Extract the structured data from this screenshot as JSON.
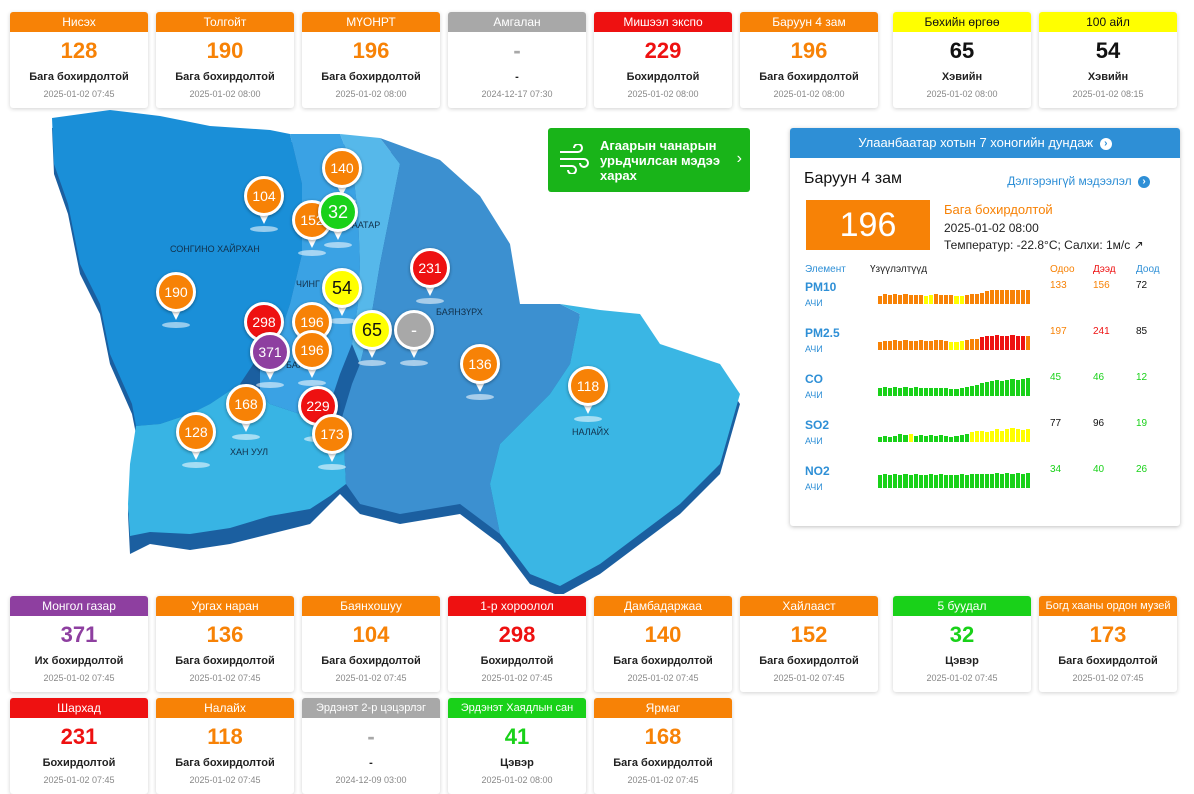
{
  "top_cards": [
    {
      "name": "Нисэх",
      "value": "128",
      "status": "Бага бохирдолтой",
      "time": "2025-01-02 07:45",
      "header_color": "#f78206",
      "value_color": "#f78206",
      "title_text_color": "#ffffff"
    },
    {
      "name": "Толгойт",
      "value": "190",
      "status": "Бага бохирдолтой",
      "time": "2025-01-02 08:00",
      "header_color": "#f78206",
      "value_color": "#f78206",
      "title_text_color": "#ffffff"
    },
    {
      "name": "МҮОНРТ",
      "value": "196",
      "status": "Бага бохирдолтой",
      "time": "2025-01-02 08:00",
      "header_color": "#f78206",
      "value_color": "#f78206",
      "title_text_color": "#ffffff"
    },
    {
      "name": "Амгалан",
      "value": "-",
      "status": "-",
      "time": "2024-12-17 07:30",
      "header_color": "#a8a8a8",
      "value_color": "#a8a8a8",
      "title_text_color": "#ffffff"
    },
    {
      "name": "Мишээл экспо",
      "value": "229",
      "status": "Бохирдолтой",
      "time": "2025-01-02 08:00",
      "header_color": "#ee1111",
      "value_color": "#ee1111",
      "title_text_color": "#ffffff"
    },
    {
      "name": "Баруун 4 зам",
      "value": "196",
      "status": "Бага бохирдолтой",
      "time": "2025-01-02 08:00",
      "header_color": "#f78206",
      "value_color": "#f78206",
      "title_text_color": "#ffffff"
    },
    {
      "name": "Бөхийн өргөө",
      "value": "65",
      "status": "Хэвийн",
      "time": "2025-01-02 08:00",
      "header_color": "#ffff00",
      "value_color": "#111111",
      "title_text_color": "#111111"
    },
    {
      "name": "100 айл",
      "value": "54",
      "status": "Хэвийн",
      "time": "2025-01-02 08:15",
      "header_color": "#ffff00",
      "value_color": "#111111",
      "title_text_color": "#111111"
    }
  ],
  "bottom_cards_row1": [
    {
      "name": "Монгол газар",
      "value": "371",
      "status": "Их бохирдолтой",
      "time": "2025-01-02 07:45",
      "header_color": "#8e3fa0",
      "value_color": "#8e3fa0",
      "title_text_color": "#ffffff"
    },
    {
      "name": "Ургах наран",
      "value": "136",
      "status": "Бага бохирдолтой",
      "time": "2025-01-02 07:45",
      "header_color": "#f78206",
      "value_color": "#f78206",
      "title_text_color": "#ffffff"
    },
    {
      "name": "Баянхошуу",
      "value": "104",
      "status": "Бага бохирдолтой",
      "time": "2025-01-02 07:45",
      "header_color": "#f78206",
      "value_color": "#f78206",
      "title_text_color": "#ffffff"
    },
    {
      "name": "1-р хороолол",
      "value": "298",
      "status": "Бохирдолтой",
      "time": "2025-01-02 07:45",
      "header_color": "#ee1111",
      "value_color": "#ee1111",
      "title_text_color": "#ffffff"
    },
    {
      "name": "Дамбадаржаа",
      "value": "140",
      "status": "Бага бохирдолтой",
      "time": "2025-01-02 07:45",
      "header_color": "#f78206",
      "value_color": "#f78206",
      "title_text_color": "#ffffff"
    },
    {
      "name": "Хайлааст",
      "value": "152",
      "status": "Бага бохирдолтой",
      "time": "2025-01-02 07:45",
      "header_color": "#f78206",
      "value_color": "#f78206",
      "title_text_color": "#ffffff"
    },
    {
      "name": "5 буудал",
      "value": "32",
      "status": "Цэвэр",
      "time": "2025-01-02 07:45",
      "header_color": "#19d119",
      "value_color": "#19d119",
      "title_text_color": "#ffffff"
    },
    {
      "name": "Богд хааны ордон музей",
      "value": "173",
      "status": "Бага бохирдолтой",
      "time": "2025-01-02 07:45",
      "header_color": "#f78206",
      "value_color": "#f78206",
      "title_text_color": "#ffffff"
    }
  ],
  "bottom_cards_row2": [
    {
      "name": "Шархад",
      "value": "231",
      "status": "Бохирдолтой",
      "time": "2025-01-02 07:45",
      "header_color": "#ee1111",
      "value_color": "#ee1111",
      "title_text_color": "#ffffff"
    },
    {
      "name": "Налайх",
      "value": "118",
      "status": "Бага бохирдолтой",
      "time": "2025-01-02 07:45",
      "header_color": "#f78206",
      "value_color": "#f78206",
      "title_text_color": "#ffffff"
    },
    {
      "name": "Эрдэнэт 2-р цэцэрлэг",
      "value": "-",
      "status": "-",
      "time": "2024-12-09 03:00",
      "header_color": "#a8a8a8",
      "value_color": "#a8a8a8",
      "title_text_color": "#ffffff"
    },
    {
      "name": "Эрдэнэт Хаядлын сан",
      "value": "41",
      "status": "Цэвэр",
      "time": "2025-01-02 08:00",
      "header_color": "#19d119",
      "value_color": "#19d119",
      "title_text_color": "#ffffff"
    },
    {
      "name": "Ярмаг",
      "value": "168",
      "status": "Бага бохирдолтой",
      "time": "2025-01-02 07:45",
      "header_color": "#f78206",
      "value_color": "#f78206",
      "title_text_color": "#ffffff"
    }
  ],
  "map": {
    "district_labels": [
      "СОНГИНО ХАЙРХАН",
      "БАЯНЗҮРХ",
      "НАЛАЙХ",
      "ХАН УУЛ",
      "БАЯНГОЛ",
      "ЧИНГЭЛТЭЙ",
      "СҮХБААТАР"
    ],
    "district_label_display": [
      "СОНГИНО ХАЙРХАН",
      "БАЯНЗҮРХ",
      "НАЛАЙХ",
      "ХАН УУЛ",
      "БАЯ",
      "ЧИНГ",
      "БААТАР"
    ],
    "pins": [
      {
        "value": "140",
        "color": "#f78206"
      },
      {
        "value": "104",
        "color": "#f78206"
      },
      {
        "value": "152",
        "color": "#f78206"
      },
      {
        "value": "32",
        "color": "#19d119"
      },
      {
        "value": "231",
        "color": "#ee1111"
      },
      {
        "value": "54",
        "color": "#ffff00",
        "text_color": "#111111"
      },
      {
        "value": "190",
        "color": "#f78206"
      },
      {
        "value": "298",
        "color": "#ee1111"
      },
      {
        "value": "196",
        "color": "#f78206"
      },
      {
        "value": "65",
        "color": "#ffff00",
        "text_color": "#111111"
      },
      {
        "value": "-",
        "color": "#a8a8a8"
      },
      {
        "value": "371",
        "color": "#8e3fa0"
      },
      {
        "value": "196",
        "color": "#f78206"
      },
      {
        "value": "136",
        "color": "#f78206"
      },
      {
        "value": "118",
        "color": "#f78206"
      },
      {
        "value": "168",
        "color": "#f78206"
      },
      {
        "value": "229",
        "color": "#ee1111"
      },
      {
        "value": "128",
        "color": "#f78206"
      },
      {
        "value": "173",
        "color": "#f78206"
      }
    ]
  },
  "forecast_button": {
    "label": "Агаарын чанарын урьдчилсан мэдээ харах",
    "icon": "wind-icon"
  },
  "panel": {
    "header": "Улаанбаатар хотын 7 хоногийн дундаж",
    "station": "Баруун 4 зам",
    "detail_link": "Дэлгэрэнгүй мэдээлэл",
    "value": "196",
    "status": "Бага бохирдолтой",
    "time": "2025-01-02 08:00",
    "weather": "Температур: -22.8°C; Салхи: 1м/с",
    "value_color": "#f78206",
    "columns": {
      "element": "Элемент",
      "trend": "Үзүүлэлтүүд",
      "now": "Одоо",
      "max": "Дээд",
      "min": "Доод"
    },
    "elements": [
      {
        "name": "PM10",
        "sub": "АЧИ",
        "now": "133",
        "max": "156",
        "min": "72",
        "now_color": "#f78206",
        "max_color": "#f78206",
        "min_color": "#111111",
        "trend": [
          {
            "v": 0.45,
            "c": "#f78206"
          },
          {
            "v": 0.55,
            "c": "#f78206"
          },
          {
            "v": 0.5,
            "c": "#f78206"
          },
          {
            "v": 0.55,
            "c": "#f78206"
          },
          {
            "v": 0.5,
            "c": "#f78206"
          },
          {
            "v": 0.55,
            "c": "#f78206"
          },
          {
            "v": 0.5,
            "c": "#f78206"
          },
          {
            "v": 0.5,
            "c": "#f78206"
          },
          {
            "v": 0.5,
            "c": "#f78206"
          },
          {
            "v": 0.45,
            "c": "#ffff00"
          },
          {
            "v": 0.5,
            "c": "#ffff00"
          },
          {
            "v": 0.55,
            "c": "#f78206"
          },
          {
            "v": 0.5,
            "c": "#f78206"
          },
          {
            "v": 0.5,
            "c": "#f78206"
          },
          {
            "v": 0.5,
            "c": "#f78206"
          },
          {
            "v": 0.45,
            "c": "#ffff00"
          },
          {
            "v": 0.45,
            "c": "#ffff00"
          },
          {
            "v": 0.5,
            "c": "#f78206"
          },
          {
            "v": 0.55,
            "c": "#f78206"
          },
          {
            "v": 0.55,
            "c": "#f78206"
          },
          {
            "v": 0.6,
            "c": "#f78206"
          },
          {
            "v": 0.7,
            "c": "#f78206"
          },
          {
            "v": 0.75,
            "c": "#f78206"
          },
          {
            "v": 0.8,
            "c": "#f78206"
          },
          {
            "v": 0.75,
            "c": "#f78206"
          },
          {
            "v": 0.75,
            "c": "#f78206"
          },
          {
            "v": 0.8,
            "c": "#f78206"
          },
          {
            "v": 0.75,
            "c": "#f78206"
          },
          {
            "v": 0.75,
            "c": "#f78206"
          },
          {
            "v": 0.8,
            "c": "#f78206"
          }
        ]
      },
      {
        "name": "PM2.5",
        "sub": "АЧИ",
        "now": "197",
        "max": "241",
        "min": "85",
        "now_color": "#f78206",
        "max_color": "#ee1111",
        "min_color": "#111111",
        "trend": [
          {
            "v": 0.45,
            "c": "#f78206"
          },
          {
            "v": 0.5,
            "c": "#f78206"
          },
          {
            "v": 0.5,
            "c": "#f78206"
          },
          {
            "v": 0.55,
            "c": "#f78206"
          },
          {
            "v": 0.5,
            "c": "#f78206"
          },
          {
            "v": 0.55,
            "c": "#f78206"
          },
          {
            "v": 0.5,
            "c": "#f78206"
          },
          {
            "v": 0.5,
            "c": "#f78206"
          },
          {
            "v": 0.55,
            "c": "#f78206"
          },
          {
            "v": 0.5,
            "c": "#f78206"
          },
          {
            "v": 0.5,
            "c": "#f78206"
          },
          {
            "v": 0.55,
            "c": "#f78206"
          },
          {
            "v": 0.55,
            "c": "#f78206"
          },
          {
            "v": 0.5,
            "c": "#f78206"
          },
          {
            "v": 0.45,
            "c": "#ffff00"
          },
          {
            "v": 0.45,
            "c": "#ffff00"
          },
          {
            "v": 0.5,
            "c": "#ffff00"
          },
          {
            "v": 0.55,
            "c": "#f78206"
          },
          {
            "v": 0.6,
            "c": "#f78206"
          },
          {
            "v": 0.6,
            "c": "#f78206"
          },
          {
            "v": 0.7,
            "c": "#ee1111"
          },
          {
            "v": 0.8,
            "c": "#ee1111"
          },
          {
            "v": 0.8,
            "c": "#ee1111"
          },
          {
            "v": 0.85,
            "c": "#ee1111"
          },
          {
            "v": 0.8,
            "c": "#ee1111"
          },
          {
            "v": 0.8,
            "c": "#ee1111"
          },
          {
            "v": 0.85,
            "c": "#ee1111"
          },
          {
            "v": 0.8,
            "c": "#ee1111"
          },
          {
            "v": 0.75,
            "c": "#ee1111"
          },
          {
            "v": 0.75,
            "c": "#f78206"
          }
        ]
      },
      {
        "name": "CO",
        "sub": "АЧИ",
        "now": "45",
        "max": "46",
        "min": "12",
        "now_color": "#19d119",
        "max_color": "#19d119",
        "min_color": "#19d119",
        "trend": [
          {
            "v": 0.45,
            "c": "#19d119"
          },
          {
            "v": 0.5,
            "c": "#19d119"
          },
          {
            "v": 0.45,
            "c": "#19d119"
          },
          {
            "v": 0.5,
            "c": "#19d119"
          },
          {
            "v": 0.45,
            "c": "#19d119"
          },
          {
            "v": 0.5,
            "c": "#19d119"
          },
          {
            "v": 0.45,
            "c": "#19d119"
          },
          {
            "v": 0.5,
            "c": "#19d119"
          },
          {
            "v": 0.45,
            "c": "#19d119"
          },
          {
            "v": 0.45,
            "c": "#19d119"
          },
          {
            "v": 0.45,
            "c": "#19d119"
          },
          {
            "v": 0.45,
            "c": "#19d119"
          },
          {
            "v": 0.45,
            "c": "#19d119"
          },
          {
            "v": 0.45,
            "c": "#19d119"
          },
          {
            "v": 0.4,
            "c": "#19d119"
          },
          {
            "v": 0.4,
            "c": "#19d119"
          },
          {
            "v": 0.45,
            "c": "#19d119"
          },
          {
            "v": 0.5,
            "c": "#19d119"
          },
          {
            "v": 0.55,
            "c": "#19d119"
          },
          {
            "v": 0.6,
            "c": "#19d119"
          },
          {
            "v": 0.7,
            "c": "#19d119"
          },
          {
            "v": 0.8,
            "c": "#19d119"
          },
          {
            "v": 0.85,
            "c": "#19d119"
          },
          {
            "v": 0.9,
            "c": "#19d119"
          },
          {
            "v": 0.85,
            "c": "#19d119"
          },
          {
            "v": 0.9,
            "c": "#19d119"
          },
          {
            "v": 0.95,
            "c": "#19d119"
          },
          {
            "v": 0.9,
            "c": "#19d119"
          },
          {
            "v": 0.95,
            "c": "#19d119"
          },
          {
            "v": 1.0,
            "c": "#19d119"
          }
        ]
      },
      {
        "name": "SO2",
        "sub": "АЧИ",
        "now": "77",
        "max": "96",
        "min": "19",
        "now_color": "#111111",
        "max_color": "#111111",
        "min_color": "#19d119",
        "trend": [
          {
            "v": 0.3,
            "c": "#19d119"
          },
          {
            "v": 0.35,
            "c": "#19d119"
          },
          {
            "v": 0.3,
            "c": "#19d119"
          },
          {
            "v": 0.35,
            "c": "#19d119"
          },
          {
            "v": 0.45,
            "c": "#19d119"
          },
          {
            "v": 0.4,
            "c": "#19d119"
          },
          {
            "v": 0.45,
            "c": "#ffff00"
          },
          {
            "v": 0.35,
            "c": "#19d119"
          },
          {
            "v": 0.4,
            "c": "#19d119"
          },
          {
            "v": 0.35,
            "c": "#19d119"
          },
          {
            "v": 0.4,
            "c": "#19d119"
          },
          {
            "v": 0.35,
            "c": "#19d119"
          },
          {
            "v": 0.4,
            "c": "#19d119"
          },
          {
            "v": 0.35,
            "c": "#19d119"
          },
          {
            "v": 0.3,
            "c": "#19d119"
          },
          {
            "v": 0.35,
            "c": "#19d119"
          },
          {
            "v": 0.4,
            "c": "#19d119"
          },
          {
            "v": 0.45,
            "c": "#19d119"
          },
          {
            "v": 0.55,
            "c": "#ffff00"
          },
          {
            "v": 0.6,
            "c": "#ffff00"
          },
          {
            "v": 0.6,
            "c": "#ffff00"
          },
          {
            "v": 0.55,
            "c": "#ffff00"
          },
          {
            "v": 0.6,
            "c": "#ffff00"
          },
          {
            "v": 0.7,
            "c": "#ffff00"
          },
          {
            "v": 0.6,
            "c": "#ffff00"
          },
          {
            "v": 0.7,
            "c": "#ffff00"
          },
          {
            "v": 0.75,
            "c": "#ffff00"
          },
          {
            "v": 0.7,
            "c": "#ffff00"
          },
          {
            "v": 0.65,
            "c": "#ffff00"
          },
          {
            "v": 0.7,
            "c": "#ffff00"
          }
        ]
      },
      {
        "name": "NO2",
        "sub": "АЧИ",
        "now": "34",
        "max": "40",
        "min": "26",
        "now_color": "#19d119",
        "max_color": "#19d119",
        "min_color": "#19d119",
        "trend": [
          {
            "v": 0.7,
            "c": "#19d119"
          },
          {
            "v": 0.75,
            "c": "#19d119"
          },
          {
            "v": 0.7,
            "c": "#19d119"
          },
          {
            "v": 0.75,
            "c": "#19d119"
          },
          {
            "v": 0.7,
            "c": "#19d119"
          },
          {
            "v": 0.75,
            "c": "#19d119"
          },
          {
            "v": 0.7,
            "c": "#19d119"
          },
          {
            "v": 0.75,
            "c": "#19d119"
          },
          {
            "v": 0.7,
            "c": "#19d119"
          },
          {
            "v": 0.7,
            "c": "#19d119"
          },
          {
            "v": 0.75,
            "c": "#19d119"
          },
          {
            "v": 0.7,
            "c": "#19d119"
          },
          {
            "v": 0.75,
            "c": "#19d119"
          },
          {
            "v": 0.7,
            "c": "#19d119"
          },
          {
            "v": 0.7,
            "c": "#19d119"
          },
          {
            "v": 0.7,
            "c": "#19d119"
          },
          {
            "v": 0.75,
            "c": "#19d119"
          },
          {
            "v": 0.7,
            "c": "#19d119"
          },
          {
            "v": 0.75,
            "c": "#19d119"
          },
          {
            "v": 0.8,
            "c": "#19d119"
          },
          {
            "v": 0.75,
            "c": "#19d119"
          },
          {
            "v": 0.8,
            "c": "#19d119"
          },
          {
            "v": 0.8,
            "c": "#19d119"
          },
          {
            "v": 0.85,
            "c": "#19d119"
          },
          {
            "v": 0.8,
            "c": "#19d119"
          },
          {
            "v": 0.85,
            "c": "#19d119"
          },
          {
            "v": 0.8,
            "c": "#19d119"
          },
          {
            "v": 0.85,
            "c": "#19d119"
          },
          {
            "v": 0.8,
            "c": "#19d119"
          },
          {
            "v": 0.85,
            "c": "#19d119"
          }
        ]
      }
    ]
  }
}
